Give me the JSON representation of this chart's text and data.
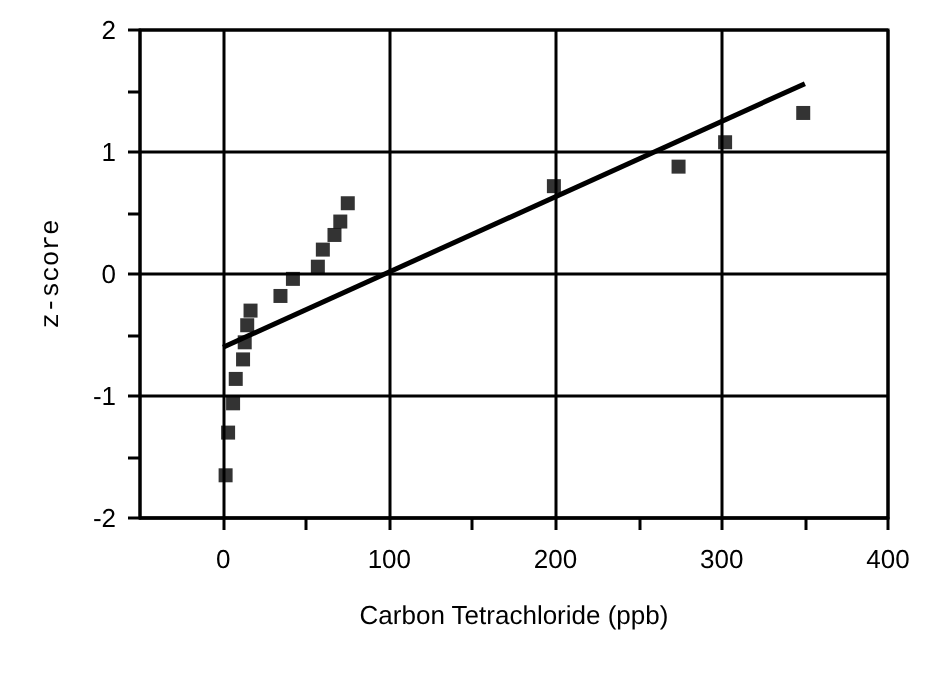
{
  "chart_data": {
    "type": "scatter",
    "xlabel": "Carbon Tetrachloride (ppb)",
    "ylabel": "z-score",
    "xlim": [
      -50,
      400
    ],
    "xticks": [
      0,
      {
        "value": 50,
        "label": null
      },
      100,
      {
        "value": 150,
        "label": null
      },
      200,
      {
        "value": 250,
        "label": null
      },
      300,
      {
        "value": 350,
        "label": null
      },
      400
    ],
    "ylim": [
      -2,
      2
    ],
    "yticks": [
      -2,
      {
        "value": -1.5,
        "label": null
      },
      -1,
      {
        "value": -0.5,
        "label": null
      },
      0,
      {
        "value": 0.5,
        "label": null
      },
      1,
      {
        "value": 1.5,
        "label": null
      },
      2
    ],
    "grid": true,
    "series": [
      {
        "marker": "square",
        "color": "#000000",
        "x": [
          1.5,
          3,
          6,
          7.6,
          12,
          13,
          14.5,
          16.5,
          34.5,
          42,
          57,
          60,
          67,
          70.5,
          75,
          199,
          274,
          302,
          349
        ],
        "values": [
          -1.65,
          -1.3,
          -1.06,
          -0.86,
          -0.7,
          -0.56,
          -0.42,
          -0.3,
          -0.18,
          -0.04,
          0.06,
          0.2,
          0.32,
          0.43,
          0.58,
          0.72,
          0.88,
          1.08,
          1.32
        ]
      },
      {
        "type": "line",
        "color": "#000000",
        "x": [
          0,
          350
        ],
        "values": [
          -0.6,
          1.56
        ]
      }
    ]
  }
}
